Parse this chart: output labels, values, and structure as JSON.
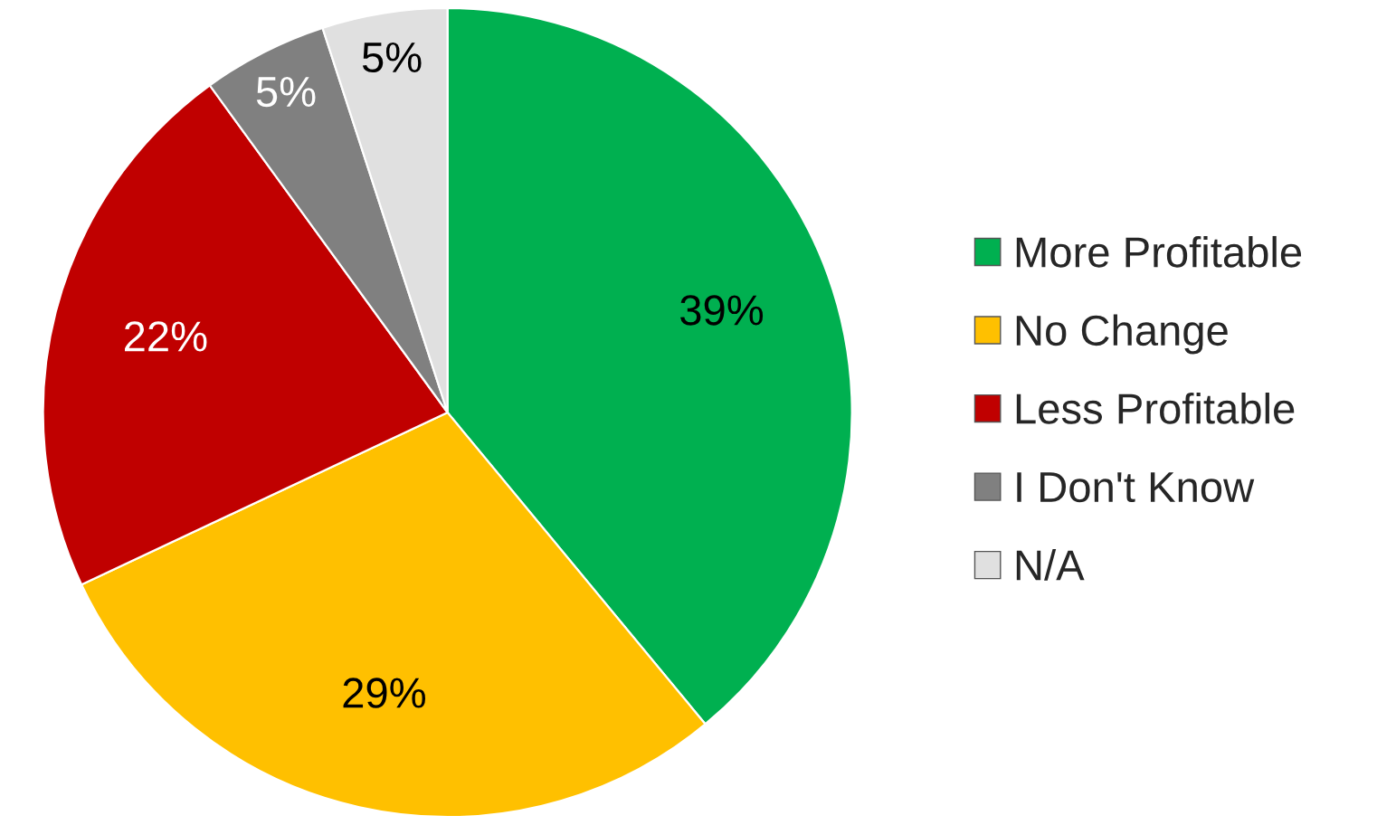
{
  "chart_data": {
    "type": "pie",
    "categories": [
      "More Profitable",
      "No Change",
      "Less Profitable",
      "I Don't Know",
      "N/A"
    ],
    "values": [
      39,
      29,
      22,
      5,
      5
    ],
    "colors": [
      "#00b050",
      "#ffc000",
      "#c00000",
      "#808080",
      "#e0e0e0"
    ],
    "value_labels": [
      "39%",
      "29%",
      "22%",
      "5%",
      "5%"
    ],
    "legend": "right"
  }
}
